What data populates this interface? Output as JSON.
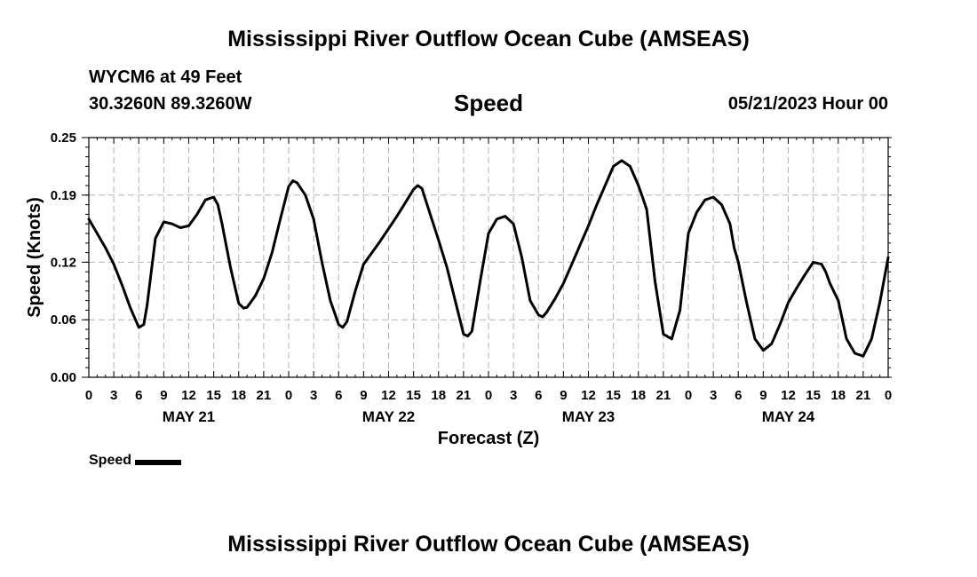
{
  "header": {
    "title": "Mississippi River Outflow Ocean Cube (AMSEAS)",
    "station": "WYCM6 at 49 Feet",
    "coords": "30.3260N  89.3260W",
    "datetime": "05/21/2023 Hour 00"
  },
  "footer": {
    "title": "Mississippi River Outflow Ocean Cube (AMSEAS)"
  },
  "chart_data": {
    "type": "line",
    "title": "Speed",
    "xlabel": "Forecast (Z)",
    "ylabel": "Speed (Knots)",
    "xlim": [
      0,
      96
    ],
    "ylim": [
      0,
      0.25
    ],
    "grid": true,
    "y_ticks": [
      0.0,
      0.06,
      0.12,
      0.19,
      0.25
    ],
    "y_tick_labels": [
      "0.00",
      "0.06",
      "0.12",
      "0.19",
      "0.25"
    ],
    "x_tick_hours": [
      0,
      3,
      6,
      9,
      12,
      15,
      18,
      21,
      24,
      27,
      30,
      33,
      36,
      39,
      42,
      45,
      48,
      51,
      54,
      57,
      60,
      63,
      66,
      69,
      72,
      75,
      78,
      81,
      84,
      87,
      90,
      93,
      96
    ],
    "x_tick_labels": [
      "0",
      "3",
      "6",
      "9",
      "12",
      "15",
      "18",
      "21",
      "0",
      "3",
      "6",
      "9",
      "12",
      "15",
      "18",
      "21",
      "0",
      "3",
      "6",
      "9",
      "12",
      "15",
      "18",
      "21",
      "0",
      "3",
      "6",
      "9",
      "12",
      "15",
      "18",
      "21",
      "0"
    ],
    "day_labels": [
      {
        "hour": 12,
        "label": "MAY 21"
      },
      {
        "hour": 36,
        "label": "MAY 22"
      },
      {
        "hour": 60,
        "label": "MAY 23"
      },
      {
        "hour": 84,
        "label": "MAY 24"
      }
    ],
    "legend": {
      "position": "bottom-left",
      "entries": [
        "Speed"
      ]
    },
    "series": [
      {
        "name": "Speed",
        "color": "#000000",
        "x": [
          0,
          1,
          2,
          3,
          4,
          5,
          6,
          6.6,
          7,
          8,
          9,
          10,
          11,
          12,
          13,
          14,
          15,
          15.5,
          16,
          17,
          18,
          18.6,
          19,
          20,
          21,
          22,
          23,
          24,
          24.5,
          25,
          26,
          27,
          28,
          29,
          30,
          30.5,
          31,
          32,
          33,
          34,
          35,
          36,
          37,
          38,
          39,
          39.5,
          40,
          41,
          42,
          43,
          44,
          45,
          45.5,
          46,
          47,
          48,
          49,
          50,
          51,
          52,
          53,
          54,
          54.5,
          55,
          56,
          57,
          58,
          59,
          60,
          61,
          62,
          63,
          64,
          65,
          66,
          66.5,
          67,
          68,
          69,
          70,
          71,
          72,
          73,
          74,
          75,
          76,
          77,
          77.5,
          78,
          79,
          80,
          81,
          82,
          83,
          84,
          85,
          86,
          87,
          88,
          88.5,
          89,
          90,
          91,
          92,
          93,
          94,
          95,
          96
        ],
        "values": [
          0.165,
          0.15,
          0.135,
          0.118,
          0.096,
          0.072,
          0.052,
          0.055,
          0.075,
          0.145,
          0.162,
          0.16,
          0.156,
          0.158,
          0.17,
          0.185,
          0.188,
          0.18,
          0.16,
          0.115,
          0.077,
          0.072,
          0.073,
          0.085,
          0.103,
          0.13,
          0.165,
          0.199,
          0.205,
          0.203,
          0.19,
          0.165,
          0.12,
          0.08,
          0.055,
          0.052,
          0.058,
          0.09,
          0.118,
          0.13,
          0.142,
          0.155,
          0.168,
          0.182,
          0.196,
          0.2,
          0.197,
          0.17,
          0.143,
          0.115,
          0.08,
          0.045,
          0.043,
          0.048,
          0.1,
          0.15,
          0.165,
          0.168,
          0.16,
          0.125,
          0.08,
          0.065,
          0.063,
          0.068,
          0.082,
          0.098,
          0.118,
          0.138,
          0.158,
          0.18,
          0.2,
          0.22,
          0.226,
          0.22,
          0.2,
          0.188,
          0.175,
          0.1,
          0.045,
          0.04,
          0.07,
          0.15,
          0.172,
          0.185,
          0.188,
          0.18,
          0.16,
          0.135,
          0.12,
          0.078,
          0.04,
          0.028,
          0.035,
          0.055,
          0.078,
          0.093,
          0.107,
          0.12,
          0.118,
          0.11,
          0.098,
          0.08,
          0.04,
          0.025,
          0.022,
          0.04,
          0.078,
          0.125
        ]
      }
    ]
  }
}
